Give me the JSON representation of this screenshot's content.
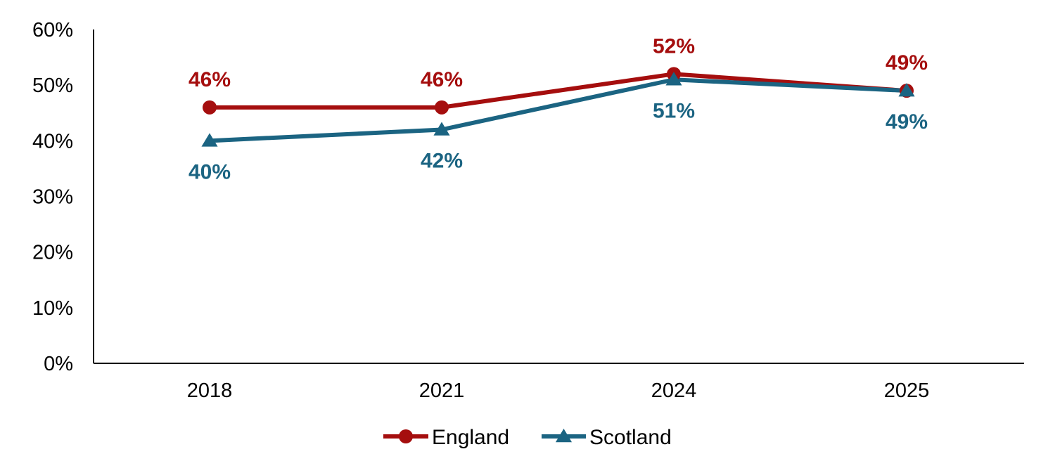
{
  "chart_data": {
    "type": "line",
    "title": "",
    "xlabel": "",
    "ylabel": "",
    "categories": [
      "2018",
      "2021",
      "2024",
      "2025"
    ],
    "ylim": [
      0,
      60
    ],
    "yticks": [
      "0%",
      "10%",
      "20%",
      "30%",
      "40%",
      "50%",
      "60%"
    ],
    "y_tick_values": [
      0,
      10,
      20,
      30,
      40,
      50,
      60
    ],
    "grid": false,
    "legend_position": "bottom",
    "series": [
      {
        "name": "England",
        "values": [
          46,
          46,
          52,
          49
        ],
        "labels": [
          "46%",
          "46%",
          "52%",
          "49%"
        ],
        "color": "#A50E0E",
        "marker": "circle",
        "label_position": "above"
      },
      {
        "name": "Scotland",
        "values": [
          40,
          42,
          51,
          49
        ],
        "labels": [
          "40%",
          "42%",
          "51%",
          "49%"
        ],
        "color": "#1B6482",
        "marker": "triangle",
        "label_position": "below"
      }
    ]
  }
}
